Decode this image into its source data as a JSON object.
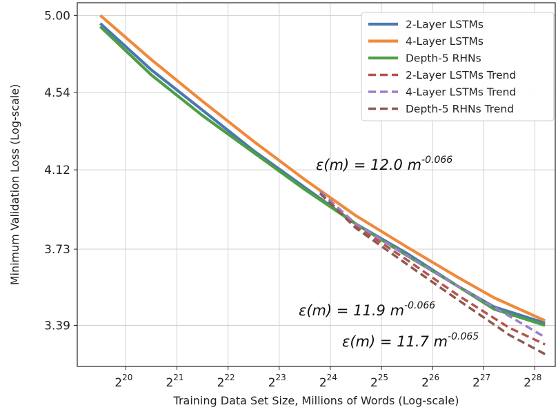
{
  "chart_data": {
    "type": "line",
    "xlabel": "Training Data Set Size, Millions of Words (Log-scale)",
    "ylabel": "Minimum Validation Loss (Log-scale)",
    "x_scale": "log2",
    "y_scale": "log",
    "xlim_log2": [
      19.05,
      28.4
    ],
    "ylim": [
      3.22,
      5.08
    ],
    "x_tick_exponents": [
      "20",
      "21",
      "22",
      "23",
      "24",
      "25",
      "26",
      "27",
      "28"
    ],
    "x_tick_base": "2",
    "y_tick_labels": [
      "3.39",
      "3.73",
      "4.12",
      "4.54",
      "5.00"
    ],
    "grid": true,
    "legend_position": "top-right",
    "series": [
      {
        "name": "2-Layer LSTMs",
        "color": "#4a78b0",
        "style": "solid",
        "points": [
          [
            19.5,
            4.95
          ],
          [
            20.5,
            4.67
          ],
          [
            21.5,
            4.44
          ],
          [
            22.5,
            4.22
          ],
          [
            23.5,
            4.03
          ],
          [
            24.5,
            3.85
          ],
          [
            25.5,
            3.71
          ],
          [
            26.5,
            3.56
          ],
          [
            27.2,
            3.47
          ],
          [
            28.2,
            3.4
          ]
        ]
      },
      {
        "name": "4-Layer LSTMs",
        "color": "#ef8a3c",
        "style": "solid",
        "points": [
          [
            19.5,
            5.0
          ],
          [
            20.5,
            4.73
          ],
          [
            21.5,
            4.49
          ],
          [
            22.5,
            4.27
          ],
          [
            23.5,
            4.07
          ],
          [
            24.5,
            3.89
          ],
          [
            25.5,
            3.74
          ],
          [
            26.5,
            3.6
          ],
          [
            27.2,
            3.51
          ],
          [
            28.2,
            3.41
          ]
        ]
      },
      {
        "name": "Depth-5 RHNs",
        "color": "#4e9e45",
        "style": "solid",
        "points": [
          [
            19.5,
            4.93
          ],
          [
            20.5,
            4.64
          ],
          [
            21.5,
            4.41
          ],
          [
            22.5,
            4.21
          ],
          [
            23.5,
            4.02
          ],
          [
            24.5,
            3.85
          ],
          [
            25.5,
            3.7
          ],
          [
            26.5,
            3.56
          ],
          [
            27.2,
            3.46
          ],
          [
            28.2,
            3.39
          ]
        ]
      },
      {
        "name": "2-Layer LSTMs Trend",
        "color": "#b5524e",
        "style": "dashed",
        "points": [
          [
            23.8,
            4.0
          ],
          [
            24.5,
            3.84
          ],
          [
            25.5,
            3.68
          ],
          [
            26.5,
            3.52
          ],
          [
            27.5,
            3.38
          ],
          [
            28.2,
            3.31
          ]
        ]
      },
      {
        "name": "4-Layer LSTMs Trend",
        "color": "#9b7fc8",
        "style": "dashed",
        "points": [
          [
            23.8,
            4.01
          ],
          [
            24.5,
            3.85
          ],
          [
            25.5,
            3.7
          ],
          [
            26.5,
            3.56
          ],
          [
            27.5,
            3.43
          ],
          [
            28.2,
            3.34
          ]
        ]
      },
      {
        "name": "Depth-5 RHNs Trend",
        "color": "#8c5a4e",
        "style": "dashed",
        "points": [
          [
            23.8,
            4.0
          ],
          [
            24.5,
            3.83
          ],
          [
            25.5,
            3.66
          ],
          [
            26.5,
            3.5
          ],
          [
            27.5,
            3.35
          ],
          [
            28.2,
            3.27
          ]
        ]
      }
    ],
    "annotations": [
      {
        "prefix": "ε(m) = 12.0 m",
        "exponent": "-0.066"
      },
      {
        "prefix": "ε(m) = 11.9 m",
        "exponent": "-0.066"
      },
      {
        "prefix": "ε(m) = 11.7 m",
        "exponent": "-0.065"
      }
    ]
  }
}
